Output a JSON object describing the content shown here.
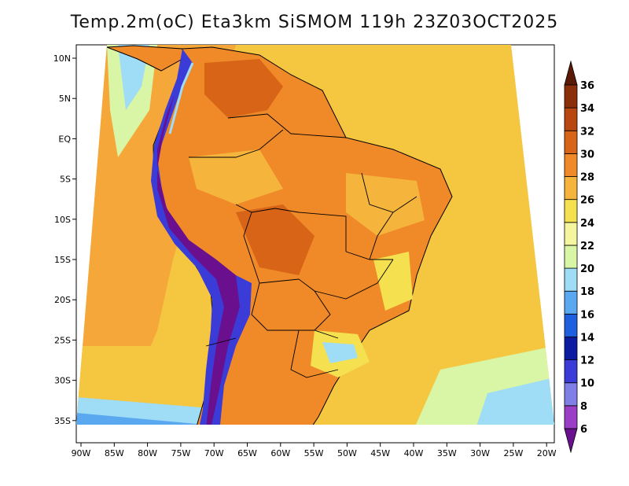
{
  "title": "Temp.2m(oC) Eta3km SiSMOM 119h 23Z03OCT2025",
  "axes": {
    "lon_labels": [
      "90W",
      "85W",
      "80W",
      "75W",
      "70W",
      "65W",
      "60W",
      "55W",
      "50W",
      "45W",
      "40W",
      "35W",
      "30W",
      "25W",
      "20W"
    ],
    "lat_labels": [
      "10N",
      "5N",
      "EQ",
      "5S",
      "10S",
      "15S",
      "20S",
      "25S",
      "30S",
      "35S"
    ]
  },
  "colorbar": {
    "labels": [
      "6",
      "8",
      "10",
      "12",
      "14",
      "16",
      "18",
      "20",
      "22",
      "24",
      "26",
      "28",
      "30",
      "32",
      "34",
      "36"
    ],
    "colors": [
      "#6a0f8e",
      "#9a3ec6",
      "#7f7fe6",
      "#3b3bd8",
      "#0b1aa0",
      "#1e5fe0",
      "#5aa8f0",
      "#9fdcf5",
      "#d9f5a6",
      "#f5f5a0",
      "#f5e150",
      "#f5b43c",
      "#f08a28",
      "#d86418",
      "#b8480f",
      "#8a2f0a",
      "#5a1a05"
    ]
  },
  "regions": {
    "pacific": "#f5a73a",
    "atlantic": "#f5c640",
    "land_interior": "#f08a28",
    "andes": "#3b3bd8",
    "andes_high": "#6a0f8e",
    "south_cool": "#9fdcf5"
  }
}
